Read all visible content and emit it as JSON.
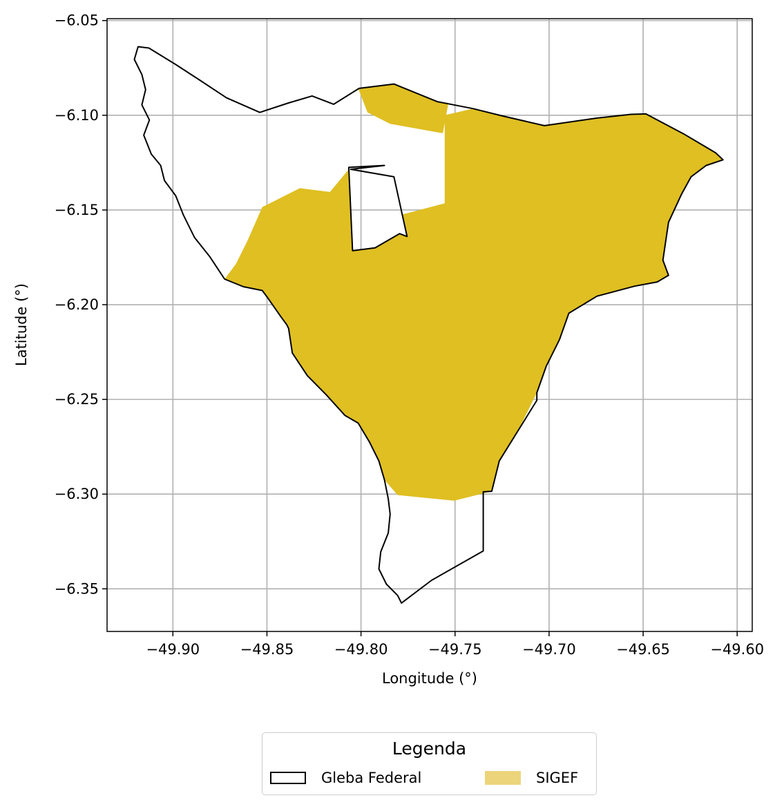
{
  "chart_data": {
    "type": "map",
    "xlabel": "Longitude (°)",
    "ylabel": "Latitude (°)",
    "xlim": [
      -49.935,
      -49.592
    ],
    "ylim": [
      -6.3725,
      -6.049
    ],
    "x_ticks": [
      -49.9,
      -49.85,
      -49.8,
      -49.75,
      -49.7,
      -49.65,
      -49.6
    ],
    "x_tick_labels": [
      "−49.90",
      "−49.85",
      "−49.80",
      "−49.75",
      "−49.70",
      "−49.65",
      "−49.60"
    ],
    "y_ticks": [
      -6.05,
      -6.1,
      -6.15,
      -6.2,
      -6.25,
      -6.3,
      -6.35
    ],
    "y_tick_labels": [
      "−6.05",
      "−6.10",
      "−6.15",
      "−6.20",
      "−6.25",
      "−6.30",
      "−6.35"
    ],
    "grid": true,
    "colors": {
      "sigef_fill": "#dfbf22",
      "sigef_legend": "#ecd47a",
      "gleba_outline": "#000000",
      "grid": "#b0b0b0"
    },
    "layers": [
      {
        "name": "Gleba Federal",
        "style": "outline",
        "polygons": [
          [
            [
              -49.9185,
              -6.0638
            ],
            [
              -49.9128,
              -6.0645
            ],
            [
              -49.8985,
              -6.0732
            ],
            [
              -49.8855,
              -6.0816
            ],
            [
              -49.8715,
              -6.0908
            ],
            [
              -49.8538,
              -6.0985
            ],
            [
              -49.8385,
              -6.0935
            ],
            [
              -49.826,
              -6.0898
            ],
            [
              -49.8145,
              -6.0942
            ],
            [
              -49.801,
              -6.0858
            ],
            [
              -49.7825,
              -6.0835
            ],
            [
              -49.7595,
              -6.0928
            ],
            [
              -49.7405,
              -6.0965
            ],
            [
              -49.7255,
              -6.1002
            ],
            [
              -49.7025,
              -6.1055
            ],
            [
              -49.6745,
              -6.1015
            ],
            [
              -49.6565,
              -6.0995
            ],
            [
              -49.6485,
              -6.0993
            ],
            [
              -49.6285,
              -6.1098
            ],
            [
              -49.6115,
              -6.1198
            ],
            [
              -49.6075,
              -6.1235
            ],
            [
              -49.6165,
              -6.1265
            ],
            [
              -49.6245,
              -6.1325
            ],
            [
              -49.6295,
              -6.1415
            ],
            [
              -49.6365,
              -6.1565
            ],
            [
              -49.6395,
              -6.1765
            ],
            [
              -49.6365,
              -6.1845
            ],
            [
              -49.6425,
              -6.188
            ],
            [
              -49.6545,
              -6.1902
            ],
            [
              -49.6745,
              -6.1955
            ],
            [
              -49.6895,
              -6.2045
            ],
            [
              -49.6945,
              -6.2185
            ],
            [
              -49.7015,
              -6.2325
            ],
            [
              -49.7065,
              -6.2465
            ],
            [
              -49.7065,
              -6.2505
            ],
            [
              -49.7165,
              -6.2665
            ],
            [
              -49.7265,
              -6.2825
            ],
            [
              -49.7305,
              -6.2985
            ],
            [
              -49.735,
              -6.2988
            ],
            [
              -49.735,
              -6.33
            ],
            [
              -49.7625,
              -6.3455
            ],
            [
              -49.7785,
              -6.3575
            ],
            [
              -49.7805,
              -6.3535
            ],
            [
              -49.7865,
              -6.3475
            ],
            [
              -49.7905,
              -6.3395
            ],
            [
              -49.7895,
              -6.3305
            ],
            [
              -49.7855,
              -6.3205
            ],
            [
              -49.7845,
              -6.3105
            ],
            [
              -49.7855,
              -6.3025
            ],
            [
              -49.7875,
              -6.2925
            ],
            [
              -49.7905,
              -6.2825
            ],
            [
              -49.7955,
              -6.2725
            ],
            [
              -49.8015,
              -6.2625
            ],
            [
              -49.8085,
              -6.2585
            ],
            [
              -49.8185,
              -6.2475
            ],
            [
              -49.8285,
              -6.2375
            ],
            [
              -49.8365,
              -6.2255
            ],
            [
              -49.8385,
              -6.2125
            ],
            [
              -49.8395,
              -6.2105
            ],
            [
              -49.8425,
              -6.2065
            ],
            [
              -49.8495,
              -6.1965
            ],
            [
              -49.8525,
              -6.1925
            ],
            [
              -49.8625,
              -6.1905
            ],
            [
              -49.8725,
              -6.1865
            ],
            [
              -49.8805,
              -6.1745
            ],
            [
              -49.8885,
              -6.1645
            ],
            [
              -49.8945,
              -6.1525
            ],
            [
              -49.8985,
              -6.1425
            ],
            [
              -49.9045,
              -6.1345
            ],
            [
              -49.9065,
              -6.1265
            ],
            [
              -49.9115,
              -6.1205
            ],
            [
              -49.9155,
              -6.1105
            ],
            [
              -49.9125,
              -6.1025
            ],
            [
              -49.9165,
              -6.0945
            ],
            [
              -49.9145,
              -6.0865
            ],
            [
              -49.9165,
              -6.0785
            ],
            [
              -49.9205,
              -6.0705
            ],
            [
              -49.9185,
              -6.0638
            ]
          ],
          [
            [
              -49.8065,
              -6.1275
            ],
            [
              -49.7875,
              -6.1265
            ],
            [
              -49.8055,
              -6.1285
            ],
            [
              -49.7825,
              -6.1325
            ],
            [
              -49.7755,
              -6.164
            ],
            [
              -49.7795,
              -6.1625
            ],
            [
              -49.7925,
              -6.17
            ],
            [
              -49.8045,
              -6.1715
            ],
            [
              -49.8065,
              -6.1275
            ]
          ]
        ]
      },
      {
        "name": "SIGEF",
        "style": "filled",
        "polygons": [
          [
            [
              -49.8015,
              -6.0858
            ],
            [
              -49.7825,
              -6.0835
            ],
            [
              -49.7595,
              -6.0928
            ],
            [
              -49.7535,
              -6.0935
            ],
            [
              -49.7565,
              -6.1095
            ],
            [
              -49.7845,
              -6.1045
            ],
            [
              -49.7965,
              -6.0985
            ],
            [
              -49.8015,
              -6.0858
            ]
          ],
          [
            [
              -49.7555,
              -6.1
            ],
            [
              -49.7405,
              -6.0965
            ],
            [
              -49.7255,
              -6.1002
            ],
            [
              -49.7025,
              -6.1055
            ],
            [
              -49.6745,
              -6.1015
            ],
            [
              -49.6565,
              -6.0995
            ],
            [
              -49.6485,
              -6.0993
            ],
            [
              -49.6285,
              -6.1098
            ],
            [
              -49.6115,
              -6.1198
            ],
            [
              -49.6075,
              -6.1235
            ],
            [
              -49.6165,
              -6.1265
            ],
            [
              -49.6245,
              -6.1325
            ],
            [
              -49.6295,
              -6.1415
            ],
            [
              -49.6365,
              -6.1565
            ],
            [
              -49.6395,
              -6.1765
            ],
            [
              -49.6365,
              -6.1845
            ],
            [
              -49.6425,
              -6.188
            ],
            [
              -49.6545,
              -6.1902
            ],
            [
              -49.6745,
              -6.1955
            ],
            [
              -49.6895,
              -6.2045
            ],
            [
              -49.6945,
              -6.2185
            ],
            [
              -49.7015,
              -6.2325
            ],
            [
              -49.7065,
              -6.2465
            ],
            [
              -49.7165,
              -6.2665
            ],
            [
              -49.7265,
              -6.2825
            ],
            [
              -49.7305,
              -6.2985
            ],
            [
              -49.7505,
              -6.3035
            ],
            [
              -49.7805,
              -6.3005
            ],
            [
              -49.7875,
              -6.2925
            ],
            [
              -49.7905,
              -6.2825
            ],
            [
              -49.7955,
              -6.2725
            ],
            [
              -49.8015,
              -6.2625
            ],
            [
              -49.8085,
              -6.2585
            ],
            [
              -49.8185,
              -6.2475
            ],
            [
              -49.8285,
              -6.2375
            ],
            [
              -49.8365,
              -6.2255
            ],
            [
              -49.8385,
              -6.2125
            ],
            [
              -49.8465,
              -6.2005
            ],
            [
              -49.8525,
              -6.1925
            ],
            [
              -49.8625,
              -6.1905
            ],
            [
              -49.8725,
              -6.1865
            ],
            [
              -49.8665,
              -6.1785
            ],
            [
              -49.8605,
              -6.1665
            ],
            [
              -49.8525,
              -6.1485
            ],
            [
              -49.8405,
              -6.1425
            ],
            [
              -49.8325,
              -6.1385
            ],
            [
              -49.8165,
              -6.1405
            ],
            [
              -49.8065,
              -6.1285
            ],
            [
              -49.8045,
              -6.1715
            ],
            [
              -49.7925,
              -6.17
            ],
            [
              -49.7795,
              -6.1625
            ],
            [
              -49.7755,
              -6.164
            ],
            [
              -49.7825,
              -6.1325
            ],
            [
              -49.7785,
              -6.1525
            ],
            [
              -49.7555,
              -6.1465
            ],
            [
              -49.7555,
              -6.1
            ]
          ]
        ]
      }
    ]
  },
  "legend": {
    "title": "Legenda",
    "items": [
      "Gleba Federal",
      "SIGEF"
    ]
  }
}
